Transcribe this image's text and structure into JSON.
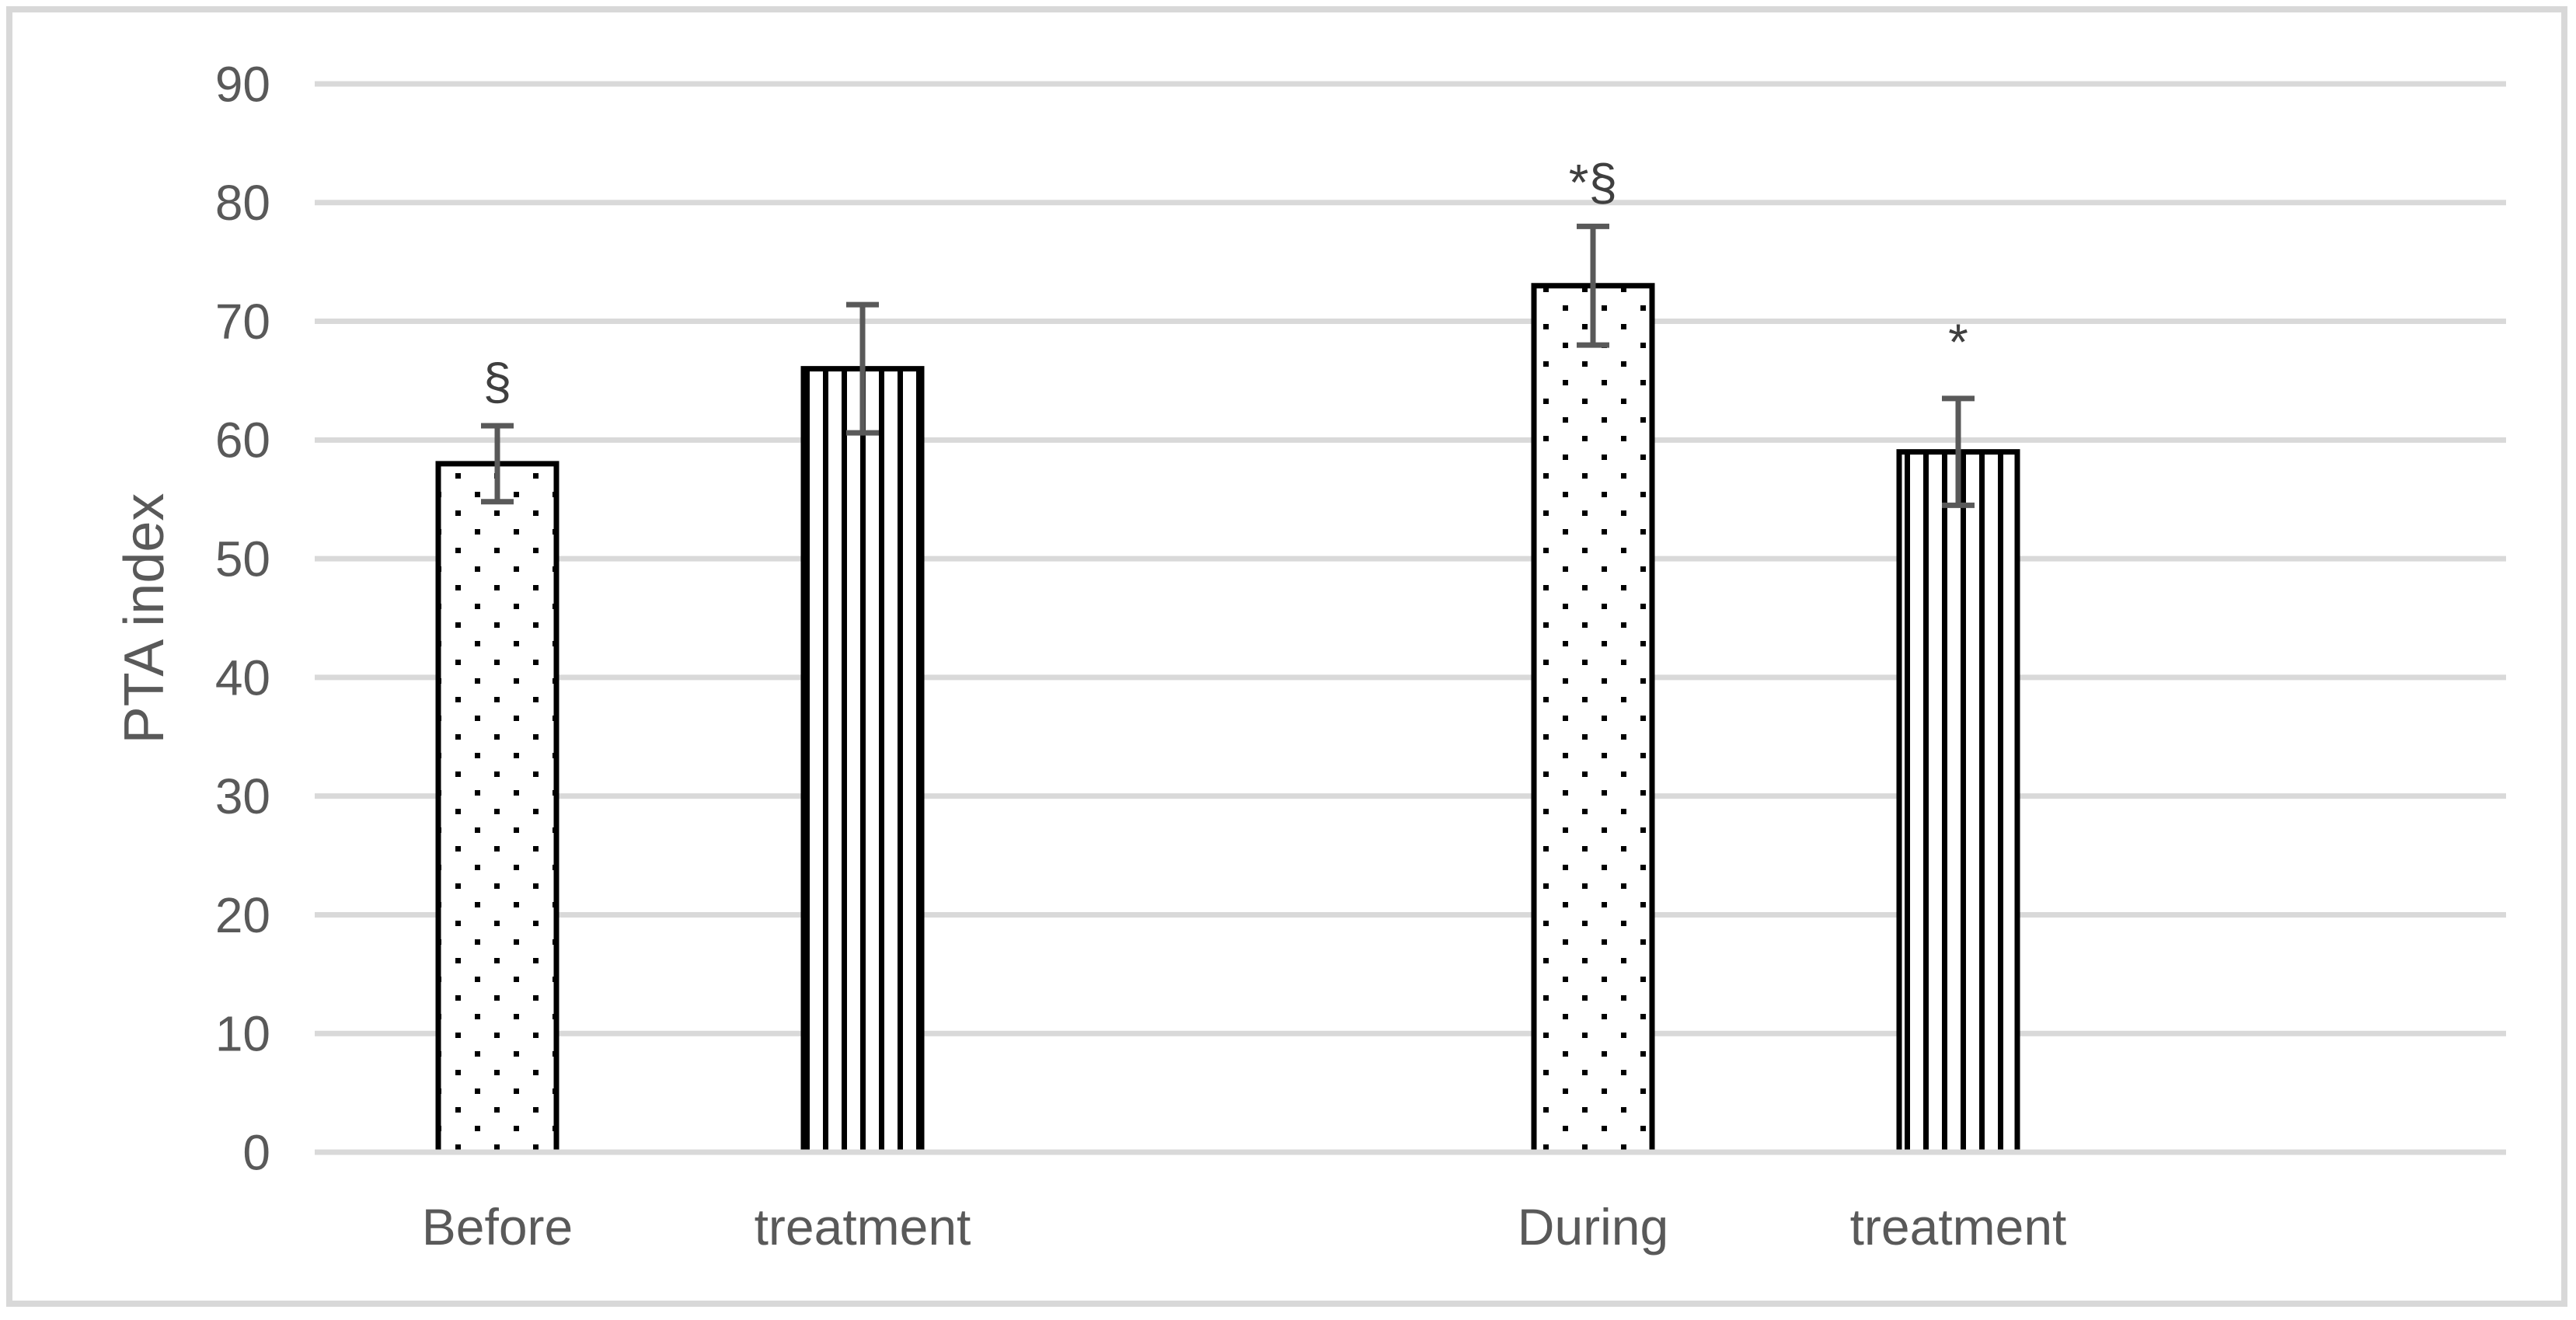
{
  "figure": {
    "background": "#FFFFFF",
    "frame_color": "#D8D8D8"
  },
  "chart_data": {
    "type": "bar",
    "title": "",
    "xlabel": "",
    "ylabel": "PTA index",
    "ylim": [
      0,
      90
    ],
    "yticks": [
      0,
      10,
      20,
      30,
      40,
      50,
      60,
      70,
      80,
      90
    ],
    "grid": true,
    "legend": false,
    "categories": [
      "Before",
      "treatment",
      "",
      "During",
      "treatment",
      ""
    ],
    "series": [
      {
        "name": "PTA index",
        "values": [
          58,
          66,
          null,
          73,
          59,
          null
        ],
        "errors": [
          3.2,
          5.4,
          null,
          5,
          4.5,
          null
        ],
        "patterns": [
          "dots",
          "vlines",
          "",
          "dots",
          "vlines",
          ""
        ],
        "annotations": [
          "§",
          "",
          "",
          "*§",
          "*",
          ""
        ]
      }
    ],
    "colors": {
      "gridline": "#D9D9D9",
      "axis_text": "#595959",
      "bar_outline": "#000000",
      "bar_fill": "#FFFFFF",
      "error_bar": "#595959",
      "annotation": "#3F3F3F"
    }
  }
}
